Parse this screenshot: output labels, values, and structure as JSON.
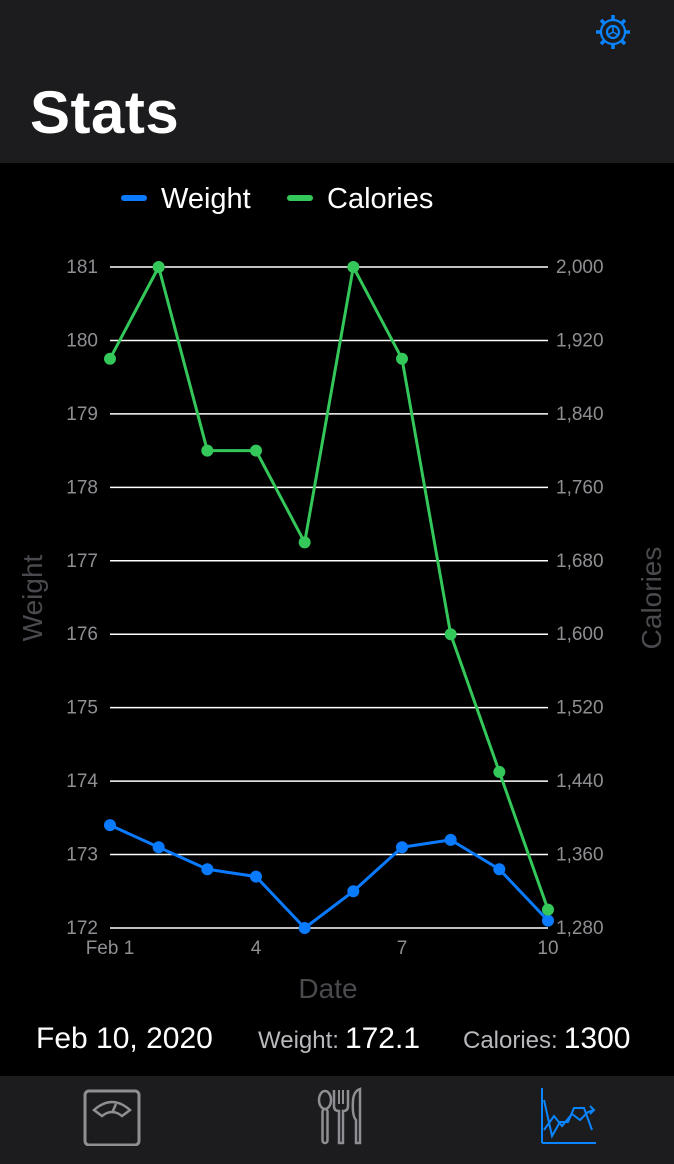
{
  "header": {
    "title": "Stats",
    "settings_icon": "gear-icon"
  },
  "colors": {
    "weight": "#0a7aff",
    "calories": "#34c759",
    "axis_text": "#8e8e93",
    "grid": "#ffffff",
    "accent": "#0a84ff"
  },
  "chart_data": {
    "type": "line",
    "xlabel": "Date",
    "x": [
      1,
      2,
      3,
      4,
      5,
      6,
      7,
      8,
      9,
      10
    ],
    "x_ticks": [
      {
        "value": 1,
        "label": "Feb 1"
      },
      {
        "value": 4,
        "label": "4"
      },
      {
        "value": 7,
        "label": "7"
      },
      {
        "value": 10,
        "label": "10"
      }
    ],
    "legend_position": "top",
    "grid": true,
    "y_left": {
      "label": "Weight",
      "range": [
        172,
        181
      ],
      "ticks": [
        "172",
        "173",
        "174",
        "175",
        "176",
        "177",
        "178",
        "179",
        "180",
        "181"
      ]
    },
    "y_right": {
      "label": "Calories",
      "range": [
        1280,
        2000
      ],
      "ticks": [
        "1,280",
        "1,360",
        "1,440",
        "1,520",
        "1,600",
        "1,680",
        "1,760",
        "1,840",
        "1,920",
        "2,000"
      ]
    },
    "series": [
      {
        "name": "Weight",
        "axis": "left",
        "values": [
          173.4,
          173.1,
          172.8,
          172.7,
          172.0,
          172.5,
          173.1,
          173.2,
          172.8,
          172.1
        ]
      },
      {
        "name": "Calories",
        "axis": "right",
        "values": [
          1900,
          2000,
          1800,
          1800,
          1700,
          2000,
          1900,
          1600,
          1450,
          1300
        ]
      }
    ]
  },
  "summary": {
    "date": "Feb 10, 2020",
    "weight_label": "Weight:",
    "weight_value": "172.1",
    "calories_label": "Calories:",
    "calories_value": "1300"
  },
  "tabbar": {
    "tabs": [
      {
        "icon": "scale-icon",
        "active": false
      },
      {
        "icon": "utensils-icon",
        "active": false
      },
      {
        "icon": "chart-icon",
        "active": true
      }
    ]
  }
}
